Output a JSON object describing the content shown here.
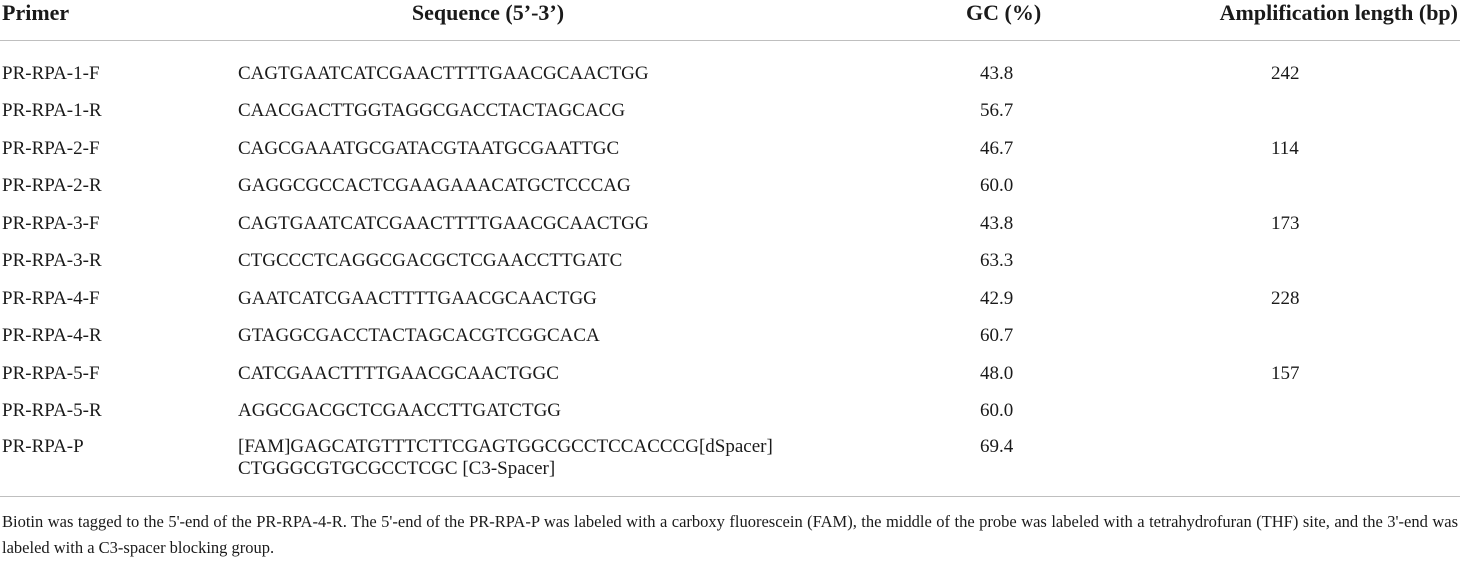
{
  "table": {
    "headers": {
      "primer": "Primer",
      "sequence": "Sequence (5’-3’)",
      "gc": "GC (%)",
      "amplification": "Amplification length (bp)"
    },
    "rows": [
      {
        "primer": "PR-RPA-1-F",
        "sequence": "CAGTGAATCATCGAACTTTTGAACGCAACTGG",
        "gc": "43.8",
        "amplification": "242"
      },
      {
        "primer": "PR-RPA-1-R",
        "sequence": "CAACGACTTGGTAGGCGACCTACTAGCACG",
        "gc": "56.7",
        "amplification": ""
      },
      {
        "primer": "PR-RPA-2-F",
        "sequence": "CAGCGAAATGCGATACGTAATGCGAATTGC",
        "gc": "46.7",
        "amplification": "114"
      },
      {
        "primer": "PR-RPA-2-R",
        "sequence": "GAGGCGCCACTCGAAGAAACATGCTCCCAG",
        "gc": "60.0",
        "amplification": ""
      },
      {
        "primer": "PR-RPA-3-F",
        "sequence": "CAGTGAATCATCGAACTTTTGAACGCAACTGG",
        "gc": "43.8",
        "amplification": "173"
      },
      {
        "primer": "PR-RPA-3-R",
        "sequence": "CTGCCCTCAGGCGACGCTCGAACCTTGATC",
        "gc": "63.3",
        "amplification": ""
      },
      {
        "primer": "PR-RPA-4-F",
        "sequence": "GAATCATCGAACTTTTGAACGCAACTGG",
        "gc": "42.9",
        "amplification": "228"
      },
      {
        "primer": "PR-RPA-4-R",
        "sequence": "GTAGGCGACCTACTAGCACGTCGGCACA",
        "gc": "60.7",
        "amplification": ""
      },
      {
        "primer": "PR-RPA-5-F",
        "sequence": "CATCGAACTTTTGAACGCAACTGGC",
        "gc": "48.0",
        "amplification": "157"
      },
      {
        "primer": "PR-RPA-5-R",
        "sequence": "AGGCGACGCTCGAACCTTGATCTGG",
        "gc": "60.0",
        "amplification": ""
      }
    ],
    "probe_row": {
      "primer": "PR-RPA-P",
      "sequence_line1": "[FAM]GAGCATGTTTCTTCGAGTGGCGCCTCCACCCG[dSpacer]",
      "sequence_line2": "CTGGGCGTGCGCCTCGC [C3-Spacer]",
      "gc": "69.4",
      "amplification": ""
    }
  },
  "footnote": "Biotin was tagged to the 5'-end of the PR-RPA-4-R. The 5'-end of the PR-RPA-P was labeled with a carboxy fluorescein (FAM), the middle of the probe was labeled with a tetrahydrofuran (THF) site, and the 3'-end was labeled with a C3-spacer blocking group."
}
